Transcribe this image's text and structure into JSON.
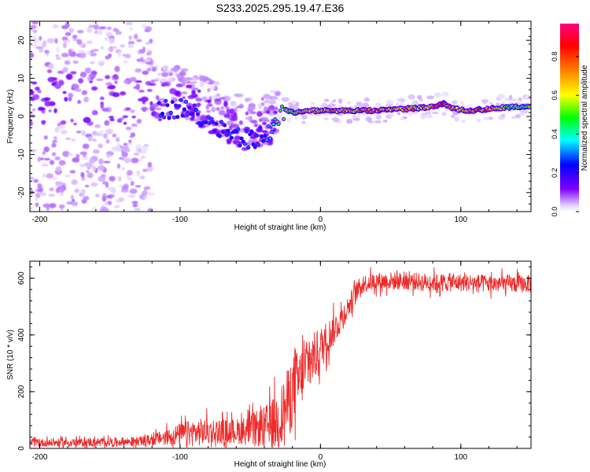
{
  "title": "S233.2025.295.19.47.E36",
  "chart_data": [
    {
      "type": "heatmap",
      "xlabel": "Height of straight line (km)",
      "ylabel": "Frequency (Hz)",
      "xlim": [
        -207,
        150
      ],
      "ylim": [
        -25,
        25
      ],
      "xticks": [
        -200,
        -100,
        0,
        100
      ],
      "xtick_labels": [
        "-200",
        "-100",
        "0",
        "100"
      ],
      "yticks": [
        20,
        10,
        0,
        -10,
        -20
      ],
      "ytick_labels": [
        "20",
        "10",
        "0",
        "-10",
        "-20"
      ],
      "colorbar": {
        "label": "Normalized spectral amplitude",
        "range": [
          0,
          0.97
        ],
        "ticks": [
          0.0,
          0.2,
          0.4,
          0.6,
          0.8
        ],
        "tick_labels": [
          "0.0",
          "0.2",
          "0.4",
          "0.6",
          "0.8"
        ],
        "colors": [
          "#ffffff",
          "#e0ccff",
          "#8000ff",
          "#0000ff",
          "#00ffff",
          "#00ff00",
          "#ffff00",
          "#ff8000",
          "#ff0000",
          "#ff0080"
        ]
      },
      "ridge": {
        "x": [
          -115,
          -100,
          -90,
          -80,
          -70,
          -60,
          -50,
          -40,
          -35,
          -30,
          -25,
          -20,
          -10,
          0,
          20,
          40,
          60,
          80,
          88,
          95,
          105,
          120,
          135,
          150
        ],
        "frequency": [
          2,
          2,
          1,
          -1,
          -3,
          -5,
          -6,
          -5,
          -4,
          -1,
          2,
          1,
          1.5,
          1.5,
          1.5,
          1.5,
          2,
          2.5,
          3.5,
          2,
          1.5,
          2,
          2.5,
          2.5
        ],
        "amplitude": [
          0.3,
          0.3,
          0.3,
          0.3,
          0.3,
          0.3,
          0.3,
          0.3,
          0.45,
          0.55,
          0.55,
          0.65,
          0.75,
          0.8,
          0.8,
          0.9,
          0.8,
          0.85,
          0.9,
          0.8,
          0.8,
          0.85,
          0.6,
          0.5
        ]
      },
      "scatter_regions": [
        {
          "x_range": [
            -207,
            -120
          ],
          "frequency_range": [
            -25,
            25
          ],
          "description": "noisy"
        },
        {
          "x_range": [
            -120,
            -30
          ],
          "frequency_range": [
            -15,
            12
          ],
          "description": "descending band"
        }
      ]
    },
    {
      "type": "line",
      "xlabel": "Height of straight line (km)",
      "ylabel": "SNR (10 * v/v)",
      "xlim": [
        -207,
        150
      ],
      "ylim": [
        0,
        660
      ],
      "xticks": [
        -200,
        -100,
        0,
        100
      ],
      "xtick_labels": [
        "-200",
        "-100",
        "0",
        "100"
      ],
      "yticks": [
        0,
        200,
        400,
        600
      ],
      "ytick_labels": [
        "0",
        "200",
        "400",
        "600"
      ],
      "color": "#ee2a2a",
      "x": [
        -207,
        -180,
        -150,
        -130,
        -120,
        -110,
        -100,
        -90,
        -80,
        -70,
        -60,
        -50,
        -40,
        -30,
        -25,
        -20,
        -15,
        -10,
        -5,
        0,
        5,
        10,
        15,
        20,
        25,
        30,
        40,
        60,
        80,
        100,
        120,
        150
      ],
      "mean": [
        20,
        20,
        22,
        25,
        30,
        40,
        50,
        55,
        60,
        60,
        60,
        65,
        75,
        100,
        140,
        200,
        240,
        290,
        320,
        350,
        390,
        420,
        460,
        500,
        550,
        580,
        590,
        590,
        585,
        585,
        580,
        580
      ],
      "spread": [
        18,
        18,
        18,
        20,
        25,
        35,
        50,
        60,
        60,
        55,
        55,
        70,
        90,
        130,
        150,
        160,
        140,
        120,
        110,
        100,
        80,
        70,
        60,
        50,
        45,
        40,
        40,
        40,
        40,
        40,
        40,
        40
      ]
    }
  ]
}
